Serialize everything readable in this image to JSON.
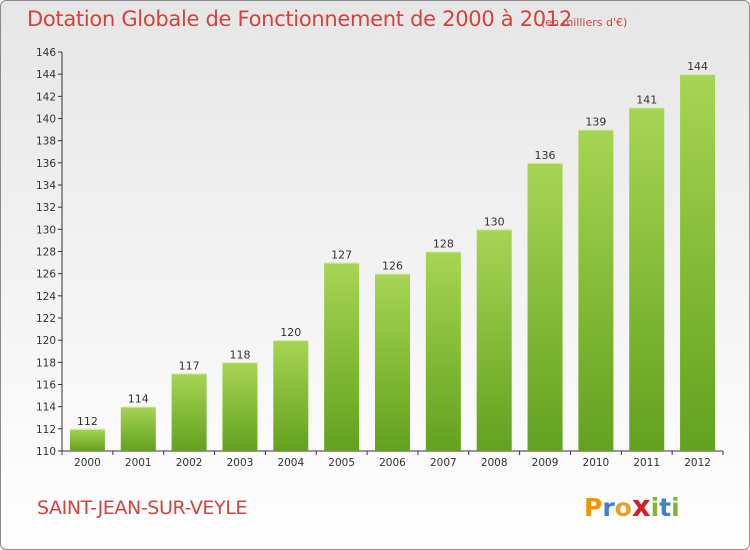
{
  "header": {
    "title": "Dotation Globale de Fonctionnement de 2000 à 2012",
    "subtitle": "(en milliers d'€)"
  },
  "footer": {
    "commune": "SAINT-JEAN-SUR-VEYLE",
    "logo": {
      "text": "Proxiti",
      "letters": [
        "P",
        "r",
        "o",
        "x",
        "i",
        "t",
        "i"
      ]
    }
  },
  "colors": {
    "accent": "#d2433d",
    "bar_light": "#a6d553",
    "bar_dark": "#63a11e",
    "logo": [
      "#f29400",
      "#3f82c4",
      "#e6a12b",
      "#d21f26",
      "#7cb733",
      "#3f82c4",
      "#7cb733"
    ]
  },
  "chart_data": {
    "type": "bar",
    "categories": [
      "2000",
      "2001",
      "2002",
      "2003",
      "2004",
      "2005",
      "2006",
      "2007",
      "2008",
      "2009",
      "2010",
      "2011",
      "2012"
    ],
    "values": [
      112,
      114,
      117,
      118,
      120,
      127,
      126,
      128,
      130,
      136,
      139,
      141,
      144
    ],
    "title": "Dotation Globale de Fonctionnement de 2000 à 2012",
    "subtitle": "(en milliers d'€)",
    "xlabel": "",
    "ylabel": "",
    "ylim": [
      110,
      146
    ],
    "yticks": [
      110,
      112,
      114,
      116,
      118,
      120,
      122,
      124,
      126,
      128,
      130,
      132,
      134,
      136,
      138,
      140,
      142,
      144,
      146
    ],
    "grid": false,
    "legend": "none"
  }
}
